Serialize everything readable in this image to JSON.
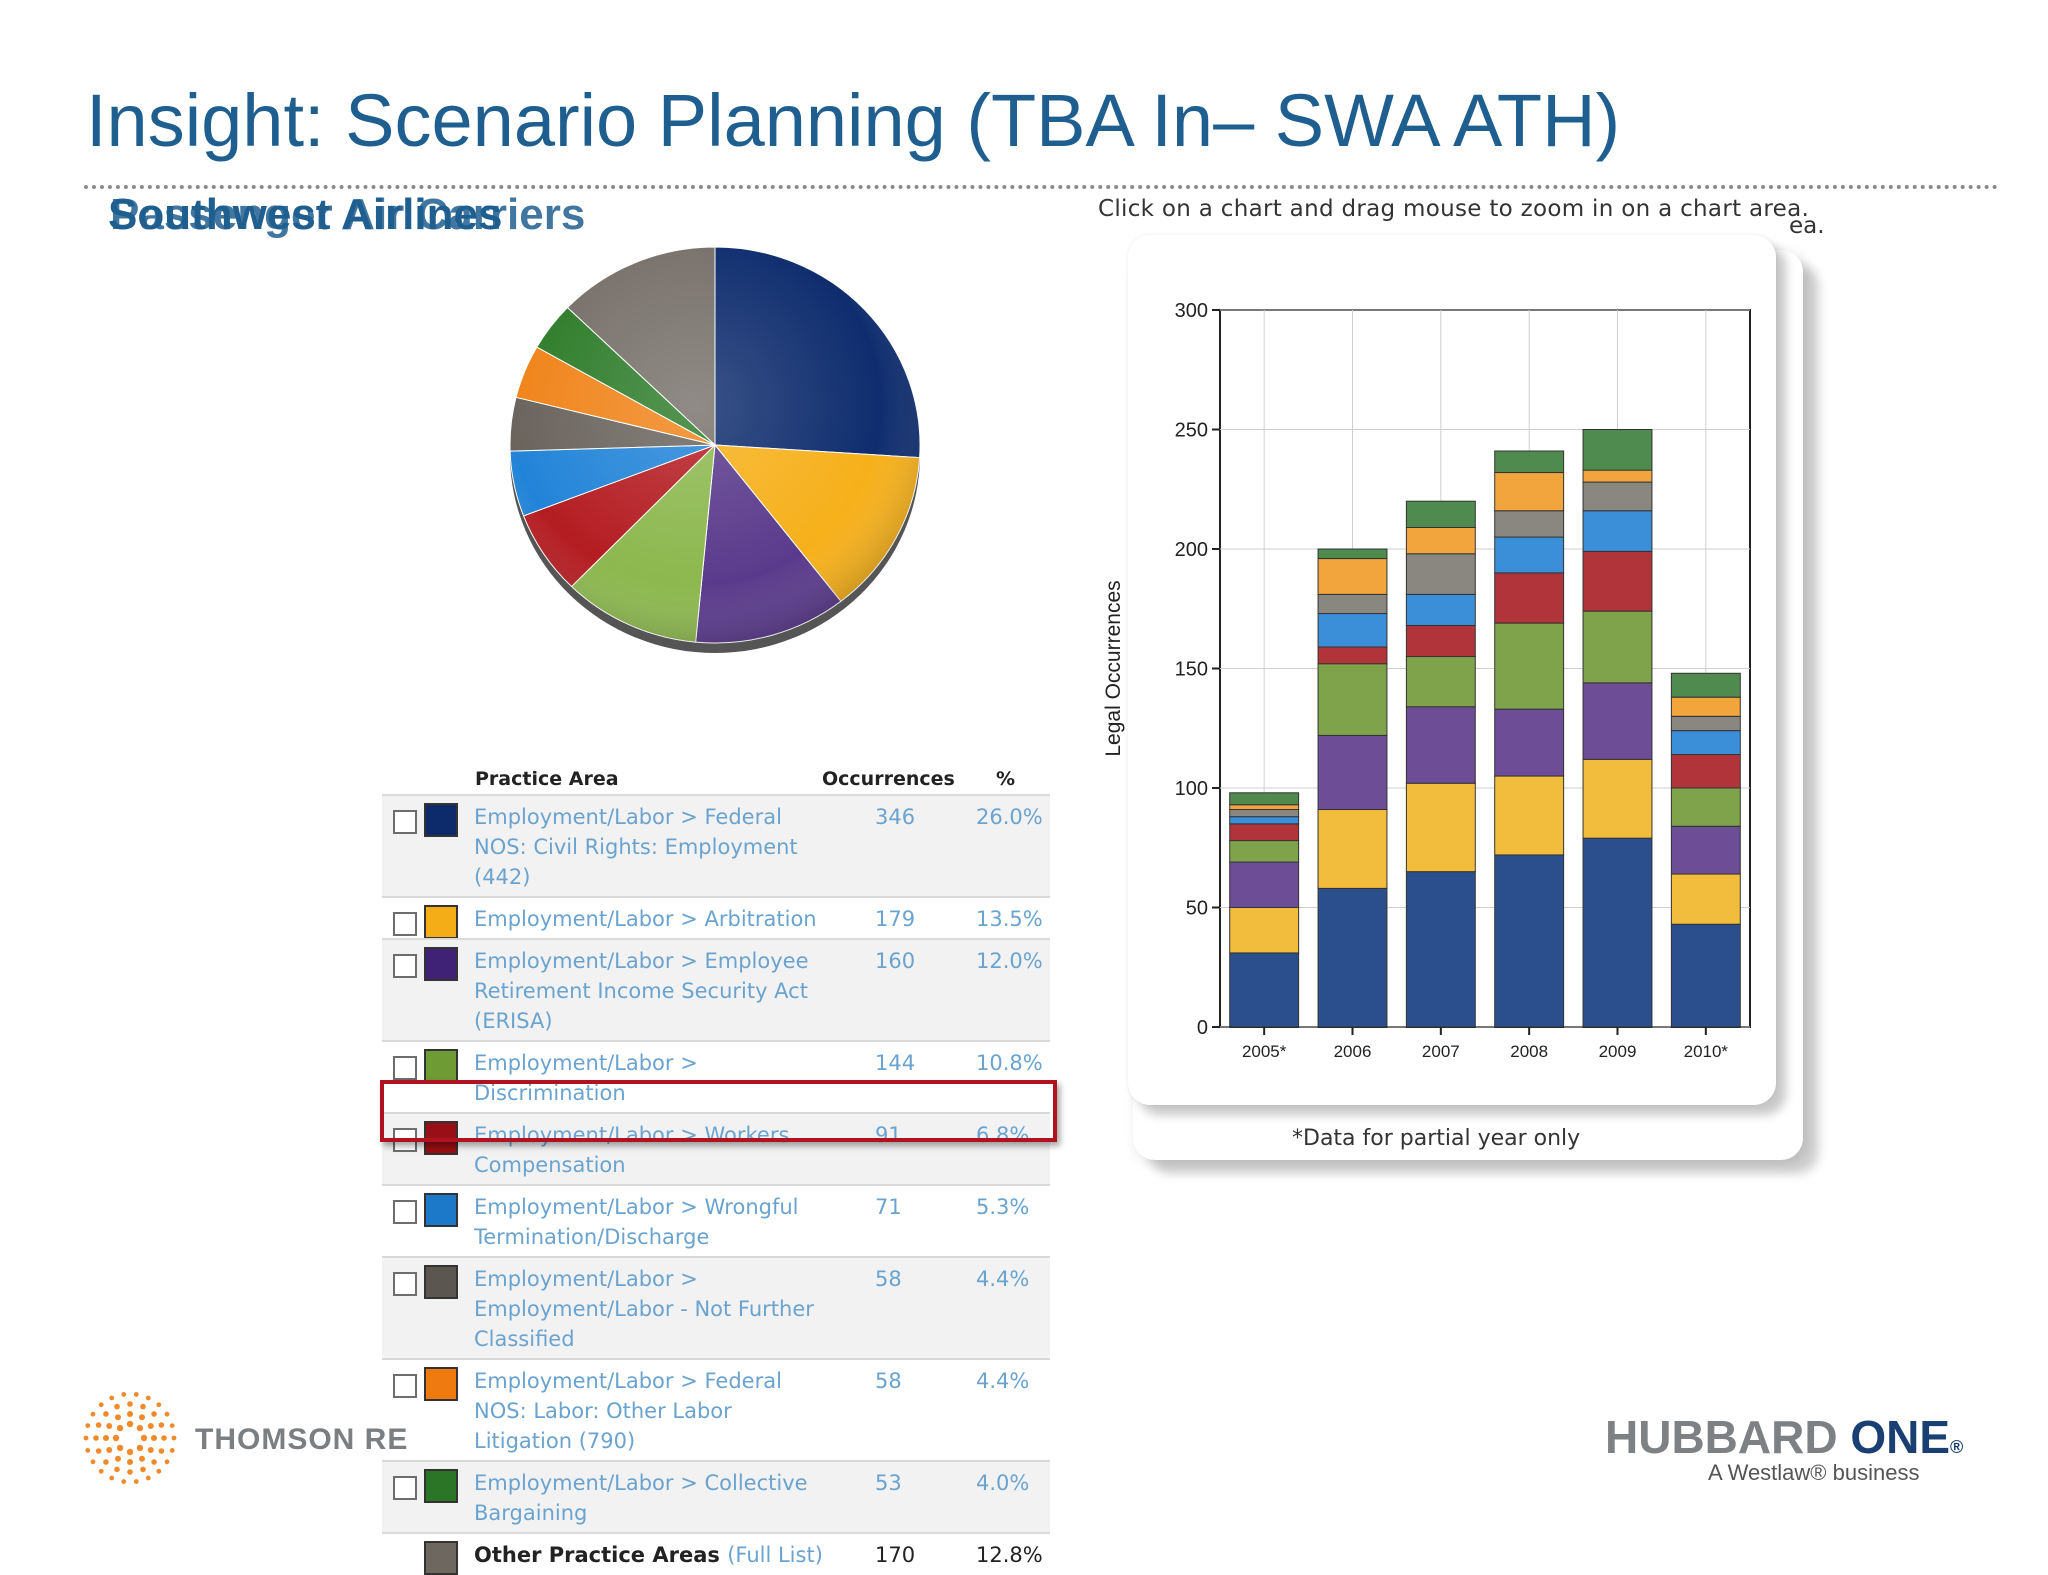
{
  "slide": {
    "title": "Insight:  Scenario Planning  (TBA In– SWA ATH)",
    "subtitle_a": "Southwest Airlines",
    "subtitle_b": "Passenger Air Carriers",
    "zoom_hint": "Click on a chart and drag mouse to zoom in on a chart area.",
    "zoom_hint_ghost": "ea.",
    "footnote": "*Data for partial year only"
  },
  "colors": {
    "title": "#1f5f8f",
    "link": "#6aa3cf",
    "highlight": "#b0121f"
  },
  "table": {
    "headers": {
      "area": "Practice Area",
      "occ": "Occurrences",
      "pct": "%"
    },
    "rows": [
      {
        "label": "Employment/Labor > Federal NOS: Civil Rights: Employment (442)",
        "occ": "346",
        "pct": "26.0%",
        "color": "#0d2a6b"
      },
      {
        "label": "Employment/Labor > Arbitration",
        "occ": "179",
        "pct": "13.5%",
        "color": "#f4ac17"
      },
      {
        "label": "Employment/Labor > Employee Retirement Income Security Act (ERISA)",
        "occ": "160",
        "pct": "12.0%",
        "color": "#3f2176"
      },
      {
        "label": "Employment/Labor > Discrimination",
        "occ": "144",
        "pct": "10.8%",
        "color": "#6e9b33"
      },
      {
        "label": "Employment/Labor > Workers Compensation",
        "occ": "91",
        "pct": "6.8%",
        "color": "#980f15"
      },
      {
        "label": "Employment/Labor > Wrongful Termination/Discharge",
        "occ": "71",
        "pct": "5.3%",
        "color": "#1c78c9"
      },
      {
        "label": "Employment/Labor > Employment/Labor - Not Further Classified",
        "occ": "58",
        "pct": "4.4%",
        "color": "#5b5650"
      },
      {
        "label": "Employment/Labor > Federal NOS: Labor: Other Labor Litigation (790)",
        "occ": "58",
        "pct": "4.4%",
        "color": "#ee7a10"
      },
      {
        "label": "Employment/Labor > Collective Bargaining",
        "occ": "53",
        "pct": "4.0%",
        "color": "#2b7626"
      }
    ],
    "other": {
      "label": "Other Practice Areas",
      "link": "(Full List)",
      "occ": "170",
      "pct": "12.8%",
      "color": "#6d675f"
    }
  },
  "chart_data": [
    {
      "type": "pie",
      "title": "",
      "slices": [
        {
          "name": "Employment/Labor > Federal NOS: Civil Rights: Employment (442)",
          "value": 346,
          "color": "#0f2d6e"
        },
        {
          "name": "Employment/Labor > Arbitration",
          "value": 179,
          "color": "#f6b01a"
        },
        {
          "name": "Employment/Labor > Employee Retirement Income Security Act (ERISA)",
          "value": 160,
          "color": "#5a3a8c"
        },
        {
          "name": "Employment/Labor > Discrimination",
          "value": 144,
          "color": "#8cb84e"
        },
        {
          "name": "Employment/Labor > Workers Compensation",
          "value": 91,
          "color": "#b41d22"
        },
        {
          "name": "Employment/Labor > Wrongful Termination/Discharge",
          "value": 71,
          "color": "#2284d8"
        },
        {
          "name": "Employment/Labor > Employment/Labor - Not Further Classified",
          "value": 58,
          "color": "#6a645d"
        },
        {
          "name": "Employment/Labor > Federal NOS: Labor: Other Labor Litigation (790)",
          "value": 58,
          "color": "#f0841a"
        },
        {
          "name": "Employment/Labor > Collective Bargaining",
          "value": 53,
          "color": "#2f7d2b"
        },
        {
          "name": "Other Practice Areas",
          "value": 170,
          "color": "#77716a"
        }
      ]
    },
    {
      "type": "bar",
      "stacked": true,
      "title": "",
      "xlabel": "",
      "ylabel": "Legal Occurrences",
      "ylim": [
        0,
        300
      ],
      "yticks": [
        0,
        50,
        100,
        150,
        200,
        250,
        300
      ],
      "categories": [
        "2005*",
        "2006",
        "2007",
        "2008",
        "2009",
        "2010*"
      ],
      "series": [
        {
          "name": "Federal NOS: Civil Rights: Employment (442)",
          "color": "#2b4f8c",
          "values": [
            31,
            58,
            65,
            72,
            79,
            43
          ]
        },
        {
          "name": "Arbitration",
          "color": "#f2bd3c",
          "values": [
            19,
            33,
            37,
            33,
            33,
            21
          ]
        },
        {
          "name": "ERISA",
          "color": "#6c4d96",
          "values": [
            19,
            31,
            32,
            28,
            32,
            20
          ]
        },
        {
          "name": "Discrimination",
          "color": "#7ea34a",
          "values": [
            9,
            30,
            21,
            36,
            30,
            16
          ]
        },
        {
          "name": "Workers Compensation",
          "color": "#b0343a",
          "values": [
            7,
            7,
            13,
            21,
            25,
            14
          ]
        },
        {
          "name": "Wrongful Termination/Discharge",
          "color": "#3b8fd8",
          "values": [
            3,
            14,
            13,
            15,
            17,
            10
          ]
        },
        {
          "name": "Not Further Classified",
          "color": "#8a8680",
          "values": [
            3,
            8,
            17,
            11,
            12,
            6
          ]
        },
        {
          "name": "Other Labor Litigation (790)",
          "color": "#f1a53c",
          "values": [
            2,
            15,
            11,
            16,
            5,
            8
          ]
        },
        {
          "name": "Collective Bargaining",
          "color": "#4f8a4f",
          "values": [
            5,
            4,
            11,
            9,
            17,
            10
          ]
        }
      ]
    }
  ],
  "branding": {
    "left_logo_text": "THOMSON RE",
    "right_brand_a": "HUBBARD ",
    "right_brand_b": "ONE",
    "right_brand_reg": "®",
    "right_tagline": "A Westlaw® business"
  }
}
